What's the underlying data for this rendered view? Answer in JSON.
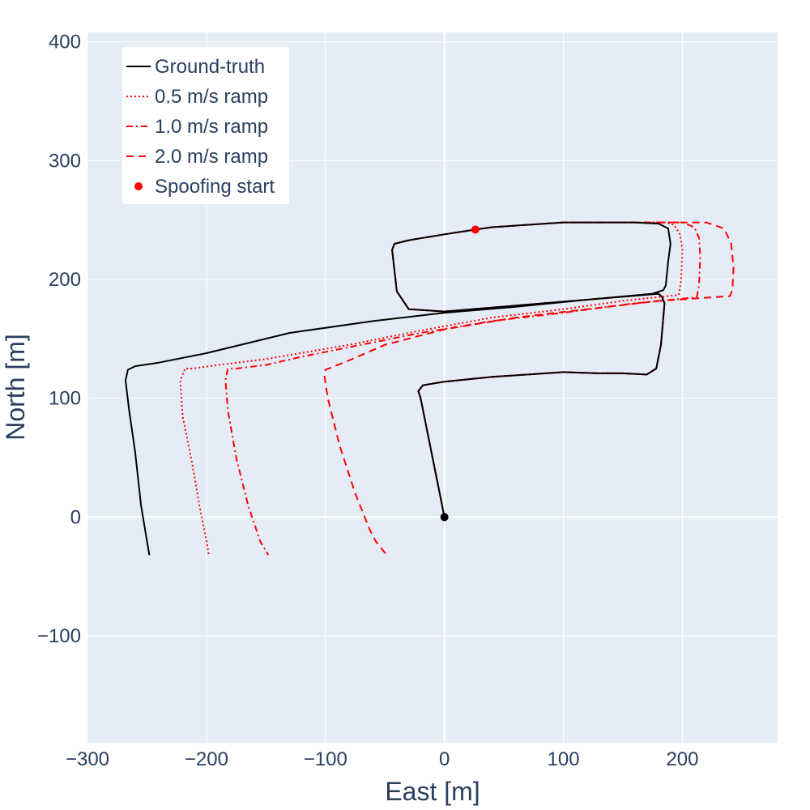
{
  "chart_data": {
    "type": "line",
    "xlabel": "East [m]",
    "ylabel": "North [m]",
    "xlim": [
      -300,
      280
    ],
    "ylim": [
      -190,
      408
    ],
    "x_ticks": [
      -300,
      -200,
      -100,
      0,
      100,
      200
    ],
    "y_ticks": [
      -100,
      0,
      100,
      200,
      300,
      400
    ],
    "x_tick_labels": [
      "−300",
      "−200",
      "−100",
      "0",
      "100",
      "200"
    ],
    "y_tick_labels": [
      "−100",
      "0",
      "100",
      "200",
      "300",
      "400"
    ],
    "grid": true,
    "background": "#e5ecf6",
    "legend_position": "top-left",
    "series": [
      {
        "name": "Ground-truth",
        "color": "#000000",
        "dash": "solid",
        "x": [
          0,
          -20,
          -22,
          -18,
          0,
          40,
          100,
          130,
          150,
          170,
          178,
          182,
          185,
          183,
          180,
          120,
          60,
          0,
          -30,
          -40,
          -44,
          -42,
          -30,
          0,
          26,
          40,
          100,
          120,
          160,
          180,
          188,
          190,
          188,
          186,
          184,
          175,
          120,
          60,
          0,
          -60,
          -130,
          -200,
          -240,
          -260,
          -266,
          -268,
          -265,
          -260,
          -255,
          -250,
          -248
        ],
        "y": [
          0,
          100,
          106,
          111,
          114,
          118,
          122,
          121,
          121,
          120,
          125,
          145,
          180,
          185,
          188,
          183,
          178,
          173,
          175,
          190,
          225,
          230,
          233,
          238,
          242,
          244,
          248,
          248,
          248,
          247,
          243,
          230,
          215,
          195,
          191,
          188,
          183,
          177,
          172,
          165,
          155,
          138,
          130,
          127,
          124,
          115,
          90,
          55,
          10,
          -20,
          -32
        ]
      },
      {
        "name": "0.5 m/s ramp",
        "color": "#ff0000",
        "dash": "dot",
        "x": [
          0,
          -20,
          -22,
          -18,
          0,
          40,
          100,
          130,
          150,
          170,
          178,
          182,
          185,
          183,
          180,
          120,
          60,
          0,
          -30,
          -40,
          -44,
          -42,
          -30,
          0,
          26,
          40,
          100,
          120,
          160,
          180,
          186,
          193,
          198,
          200,
          199,
          197,
          150,
          100,
          40,
          -20,
          -80,
          -150,
          -190,
          -212,
          -218,
          -222,
          -220,
          -212,
          -206,
          -200,
          -198
        ],
        "y": [
          0,
          100,
          106,
          111,
          114,
          118,
          122,
          121,
          121,
          120,
          125,
          145,
          180,
          185,
          188,
          183,
          178,
          173,
          175,
          190,
          225,
          230,
          233,
          238,
          242,
          244,
          248,
          248,
          248,
          248,
          248,
          246,
          238,
          225,
          200,
          187,
          182,
          175,
          168,
          157,
          145,
          133,
          128,
          125,
          125,
          115,
          85,
          45,
          10,
          -20,
          -32
        ]
      },
      {
        "name": "1.0 m/s ramp",
        "color": "#ff0000",
        "dash": "dashdot",
        "x": [
          0,
          -20,
          -22,
          -18,
          0,
          40,
          100,
          130,
          150,
          170,
          178,
          182,
          185,
          183,
          180,
          120,
          60,
          0,
          -30,
          -40,
          -44,
          -42,
          -30,
          0,
          26,
          40,
          100,
          120,
          160,
          180,
          200,
          210,
          214,
          215,
          214,
          212,
          160,
          100,
          40,
          -20,
          -80,
          -120,
          -150,
          -175,
          -182,
          -184,
          -182,
          -175,
          -165,
          -155,
          -148
        ],
        "y": [
          0,
          100,
          106,
          111,
          114,
          118,
          122,
          121,
          121,
          120,
          125,
          145,
          180,
          185,
          188,
          183,
          178,
          173,
          175,
          190,
          225,
          230,
          233,
          238,
          242,
          244,
          248,
          248,
          248,
          248,
          248,
          244,
          235,
          220,
          195,
          185,
          180,
          172,
          165,
          155,
          143,
          135,
          128,
          125,
          125,
          115,
          90,
          50,
          10,
          -20,
          -32
        ]
      },
      {
        "name": "2.0 m/s ramp",
        "color": "#ff0000",
        "dash": "dash",
        "x": [
          0,
          -20,
          -22,
          -18,
          0,
          40,
          100,
          130,
          150,
          170,
          178,
          182,
          185,
          183,
          180,
          120,
          60,
          0,
          -30,
          -40,
          -44,
          -42,
          -30,
          0,
          26,
          40,
          100,
          120,
          160,
          180,
          220,
          235,
          241,
          243,
          242,
          240,
          180,
          120,
          60,
          0,
          -50,
          -80,
          -100,
          -101,
          -98,
          -88,
          -75,
          -63,
          -58,
          -50,
          -48
        ],
        "y": [
          0,
          100,
          106,
          111,
          114,
          118,
          122,
          121,
          121,
          120,
          125,
          145,
          180,
          185,
          188,
          183,
          178,
          173,
          175,
          190,
          225,
          230,
          233,
          238,
          242,
          244,
          248,
          248,
          248,
          248,
          248,
          243,
          230,
          210,
          191,
          186,
          182,
          175,
          168,
          158,
          145,
          132,
          124,
          120,
          100,
          60,
          20,
          -10,
          -20,
          -30,
          -32
        ]
      },
      {
        "name": "Spoofing start",
        "color": "#ff0000",
        "mode": "markers",
        "x": [
          26
        ],
        "y": [
          242
        ]
      },
      {
        "color": "#000000",
        "mode": "markers",
        "showlegend": false,
        "x": [
          0
        ],
        "y": [
          0
        ]
      }
    ]
  }
}
